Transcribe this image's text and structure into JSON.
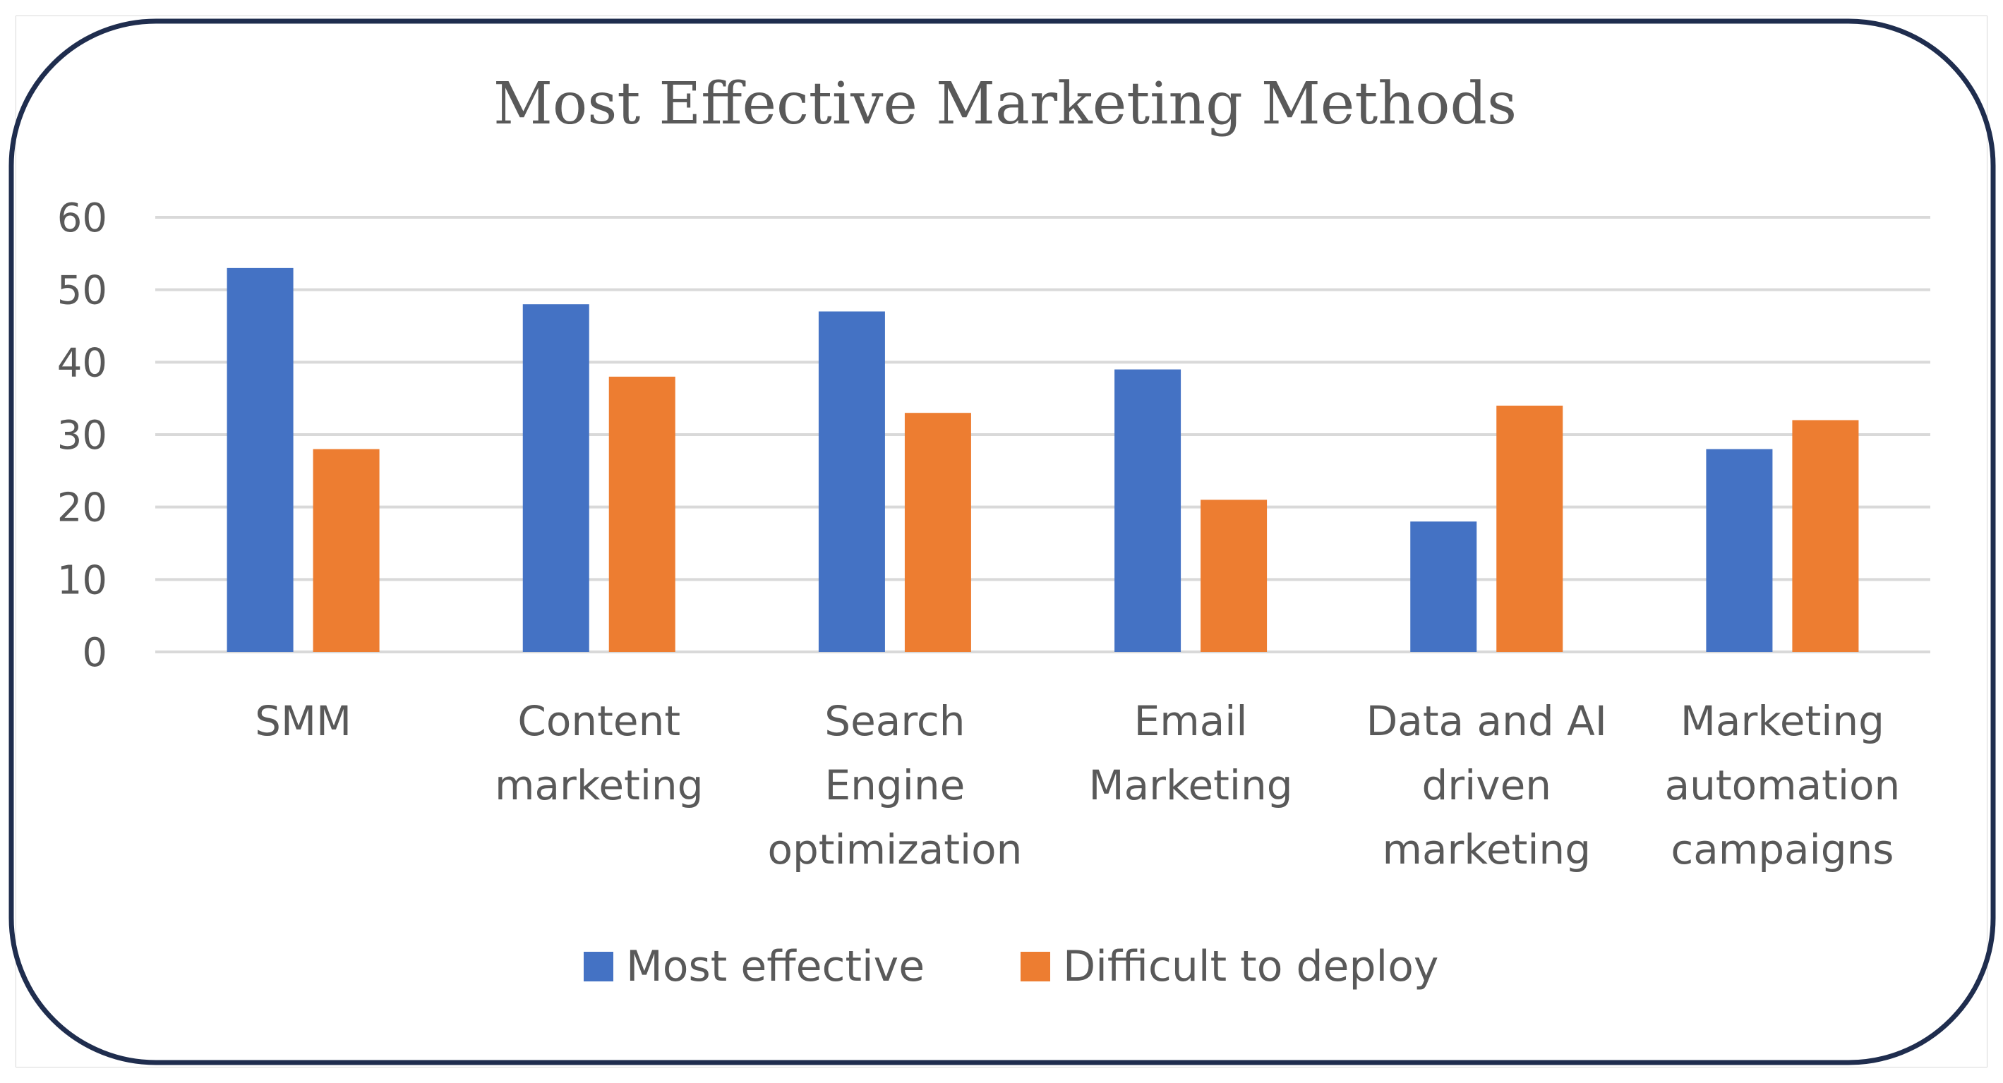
{
  "chart_data": {
    "type": "bar",
    "title": "Most Effective Marketing Methods",
    "categories": [
      [
        "SMM"
      ],
      [
        "Content",
        "marketing"
      ],
      [
        "Search",
        "Engine",
        "optimization"
      ],
      [
        "Email",
        "Marketing"
      ],
      [
        "Data and AI",
        "driven",
        "marketing"
      ],
      [
        "Marketing",
        "automation",
        "campaigns"
      ]
    ],
    "series": [
      {
        "name": "Most effective",
        "color": "#4472c4",
        "values": [
          53,
          48,
          47,
          39,
          18,
          28
        ]
      },
      {
        "name": "Difficult to deploy",
        "color": "#ed7d31",
        "values": [
          28,
          38,
          33,
          21,
          34,
          32
        ]
      }
    ],
    "ylim": [
      0,
      60
    ],
    "yticks": [
      0,
      10,
      20,
      30,
      40,
      50,
      60
    ],
    "xlabel": "",
    "ylabel": "",
    "grid": true,
    "legend": "bottom",
    "frame_color": "#1f2d4e",
    "grid_color": "#d9d9d9"
  }
}
